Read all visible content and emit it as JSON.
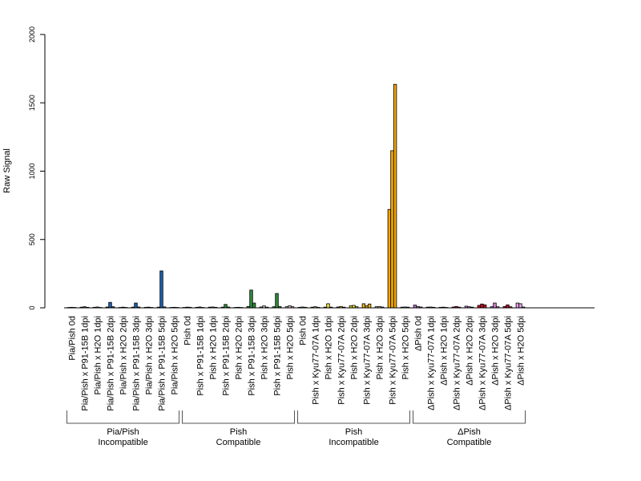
{
  "chart_data": {
    "type": "bar",
    "ylabel": "Raw Signal",
    "ylim": [
      0,
      2000
    ],
    "yticks": [
      0,
      500,
      1000,
      1500,
      2000
    ],
    "bars_per_category": 3,
    "categories": [
      "Pia/Pish 0d",
      "Pia/Pish x P91-15B 1dpi",
      "Pia/Pish x H2O 1dpi",
      "Pia/Pish x P91-15B 2dpi",
      "Pia/Pish x H2O 2dpi",
      "Pia/Pish x P91-15B 3dpi",
      "Pia/Pish x H2O 3dpi",
      "Pia/Pish x P91-15B 5dpi",
      "Pia/Pish x H2O 5dpi",
      "Pish 0d",
      "Pish x P91-15B 1dpi",
      "Pish x H2O 1dpi",
      "Pish x P91-15B 2dpi",
      "Pish x H2O 2dpi",
      "Pish x P91-15B 3dpi",
      "Pish x H2O 3dpi",
      "Pish x P91-15B 5dpi",
      "Pish x H2O 5dpi",
      "Pish 0d",
      "Pish x Kyu77-07A 1dpi",
      "Pish x H2O 1dpi",
      "Pish x Kyu77-07A 2dpi",
      "Pish x H2O 2dpi",
      "Pish x Kyu77-07A 3dpi",
      "Pish x H2O 3dpi",
      "Pish x Kyu77-07A 5dpi",
      "Pish x H2O 5dpi",
      "ΔPish 0d",
      "ΔPish x Kyu77-07A 1dpi",
      "ΔPish x H2O 1dpi",
      "ΔPish x Kyu77-07A 2dpi",
      "ΔPish x H2O 2dpi",
      "ΔPish x Kyu77-07A 3dpi",
      "ΔPish x H2O 3dpi",
      "ΔPish x Kyu77-07A 5dpi",
      "ΔPish x H2O 5dpi"
    ],
    "values": [
      [
        3,
        4,
        3
      ],
      [
        5,
        8,
        4
      ],
      [
        4,
        6,
        3
      ],
      [
        6,
        40,
        8
      ],
      [
        3,
        5,
        3
      ],
      [
        5,
        35,
        6
      ],
      [
        4,
        5,
        3
      ],
      [
        5,
        270,
        7
      ],
      [
        3,
        4,
        3
      ],
      [
        3,
        5,
        4
      ],
      [
        4,
        6,
        3
      ],
      [
        5,
        6,
        4
      ],
      [
        5,
        25,
        6
      ],
      [
        3,
        4,
        3
      ],
      [
        10,
        130,
        35
      ],
      [
        6,
        14,
        5
      ],
      [
        8,
        105,
        10
      ],
      [
        8,
        15,
        8
      ],
      [
        4,
        6,
        4
      ],
      [
        5,
        8,
        4
      ],
      [
        5,
        30,
        5
      ],
      [
        6,
        10,
        5
      ],
      [
        15,
        18,
        8
      ],
      [
        30,
        15,
        28
      ],
      [
        8,
        10,
        6
      ],
      [
        720,
        1150,
        1635
      ],
      [
        5,
        6,
        5
      ],
      [
        20,
        10,
        6
      ],
      [
        5,
        6,
        4
      ],
      [
        4,
        5,
        3
      ],
      [
        6,
        10,
        5
      ],
      [
        12,
        8,
        5
      ],
      [
        18,
        28,
        22
      ],
      [
        8,
        35,
        8
      ],
      [
        10,
        22,
        8
      ],
      [
        35,
        30,
        6
      ]
    ],
    "colors": [
      "#c8c8c8",
      "#4a6fb0",
      "#c8c8c8",
      "#1a5fb0",
      "#c8c8c8",
      "#1a5fb0",
      "#c8c8c8",
      "#1a5fb0",
      "#c8c8c8",
      "#c8c8c8",
      "#2e8b3a",
      "#c8c8c8",
      "#2e8b3a",
      "#c8c8c8",
      "#2e8b3a",
      "#c8c8c8",
      "#2e8b3a",
      "#f4c6e0",
      "#c8c8c8",
      "#e8b020",
      "#f0e030",
      "#e8b020",
      "#f0e030",
      "#e8b020",
      "#c8c8c8",
      "#f5a800",
      "#c8c8c8",
      "#c070d0",
      "#c8c8c8",
      "#c8c8c8",
      "#c01020",
      "#d080d0",
      "#c01020",
      "#d080d0",
      "#c01020",
      "#e8a0e8"
    ],
    "group_brackets": [
      {
        "line1": "Pia/Pish",
        "line2": "Incompatible",
        "start": 0,
        "end": 8
      },
      {
        "line1": "Pish",
        "line2": "Compatible",
        "start": 9,
        "end": 17
      },
      {
        "line1": "Pish",
        "line2": "Incompatible",
        "start": 18,
        "end": 26
      },
      {
        "line1": "ΔPish",
        "line2": "Compatible",
        "start": 27,
        "end": 35
      }
    ],
    "grid": false,
    "legend": "none"
  }
}
